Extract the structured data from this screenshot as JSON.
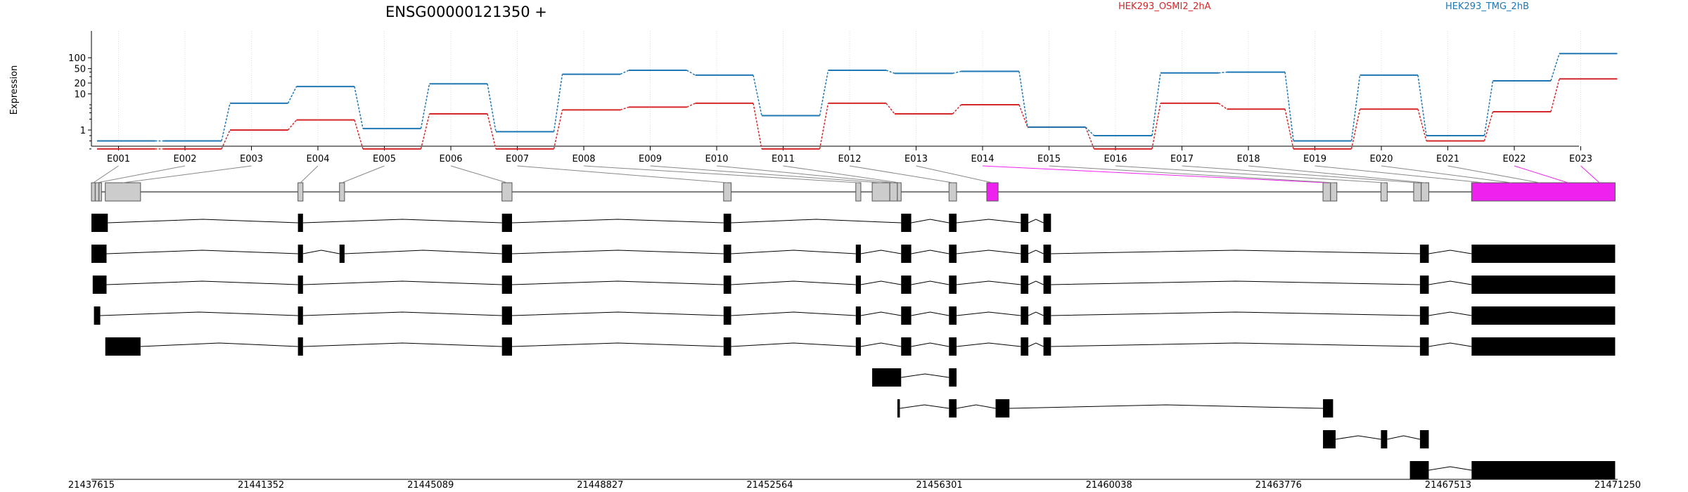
{
  "chart_data": {
    "type": "line",
    "title": "ENSG00000121350 +",
    "ylabel": "Expression",
    "yscale": "log",
    "y_ticks": [
      1,
      10,
      20,
      50,
      100
    ],
    "y_tick_labels": [
      "1",
      "10",
      "20",
      "50",
      "100"
    ],
    "grid": "vertical dotted at exon centers",
    "legend_placement": "top-right",
    "categories": [
      "E001",
      "E002",
      "E003",
      "E004",
      "E005",
      "E006",
      "E007",
      "E008",
      "E009",
      "E010",
      "E011",
      "E012",
      "E013",
      "E014",
      "E015",
      "E016",
      "E017",
      "E018",
      "E019",
      "E020",
      "E021",
      "E022",
      "E023"
    ],
    "series": [
      {
        "name": "HEK293_OSMI2_2hA",
        "color": "#d62728",
        "values": [
          0.3,
          0.3,
          1.0,
          1.9,
          0.3,
          2.8,
          0.3,
          3.6,
          4.3,
          5.5,
          0.3,
          5.5,
          2.8,
          5.0,
          1.2,
          0.3,
          5.5,
          3.8,
          0.3,
          3.8,
          0.5,
          3.2,
          26
        ]
      },
      {
        "name": "HEK293_TMG_2hB",
        "color": "#1f77b4",
        "values": [
          0.5,
          0.5,
          5.5,
          16,
          1.1,
          19,
          0.9,
          35,
          45,
          33,
          2.5,
          45,
          37,
          42,
          1.2,
          0.7,
          38,
          40,
          0.5,
          33,
          0.7,
          23,
          130
        ]
      }
    ],
    "highlighted_exon": "E014",
    "highlight_color": "#ee22ee",
    "x_tick_labels": [
      "21437615",
      "21441352",
      "21445089",
      "21448827",
      "21452564",
      "21456301",
      "21460038",
      "21463776",
      "21467513",
      "21471250"
    ],
    "transcripts": [
      [
        [
          0,
          13
        ],
        [
          164,
          168
        ],
        [
          326,
          334
        ],
        [
          502,
          508
        ],
        [
          643,
          651
        ],
        [
          681,
          687
        ],
        [
          738,
          744
        ],
        [
          756,
          762
        ]
      ],
      [
        [
          0,
          12
        ],
        [
          164,
          168
        ],
        [
          197,
          201
        ],
        [
          326,
          334
        ],
        [
          502,
          508
        ],
        [
          607,
          611
        ],
        [
          643,
          651
        ],
        [
          681,
          687
        ],
        [
          738,
          744
        ],
        [
          756,
          762
        ],
        [
          1055,
          1062
        ],
        [
          1096,
          1210
        ]
      ],
      [
        [
          1,
          12
        ],
        [
          164,
          168
        ],
        [
          326,
          334
        ],
        [
          502,
          508
        ],
        [
          607,
          611
        ],
        [
          643,
          651
        ],
        [
          681,
          687
        ],
        [
          738,
          744
        ],
        [
          756,
          762
        ],
        [
          1055,
          1062
        ],
        [
          1096,
          1210
        ]
      ],
      [
        [
          2,
          7
        ],
        [
          164,
          168
        ],
        [
          326,
          334
        ],
        [
          502,
          508
        ],
        [
          607,
          611
        ],
        [
          643,
          651
        ],
        [
          681,
          687
        ],
        [
          738,
          744
        ],
        [
          756,
          762
        ],
        [
          1055,
          1062
        ],
        [
          1096,
          1210
        ]
      ],
      [
        [
          11,
          39
        ],
        [
          164,
          168
        ],
        [
          326,
          334
        ],
        [
          502,
          508
        ],
        [
          607,
          611
        ],
        [
          643,
          651
        ],
        [
          681,
          687
        ],
        [
          738,
          744
        ],
        [
          756,
          762
        ],
        [
          1055,
          1062
        ],
        [
          1096,
          1210
        ]
      ],
      [
        [
          620,
          643
        ],
        [
          681,
          687
        ]
      ],
      [
        [
          640,
          642
        ],
        [
          681,
          687
        ],
        [
          718,
          729
        ],
        [
          978,
          986
        ]
      ],
      [
        [
          978,
          988
        ],
        [
          1024,
          1029
        ],
        [
          1055,
          1062
        ]
      ],
      [
        [
          1047,
          1062
        ],
        [
          1096,
          1210
        ]
      ]
    ]
  }
}
